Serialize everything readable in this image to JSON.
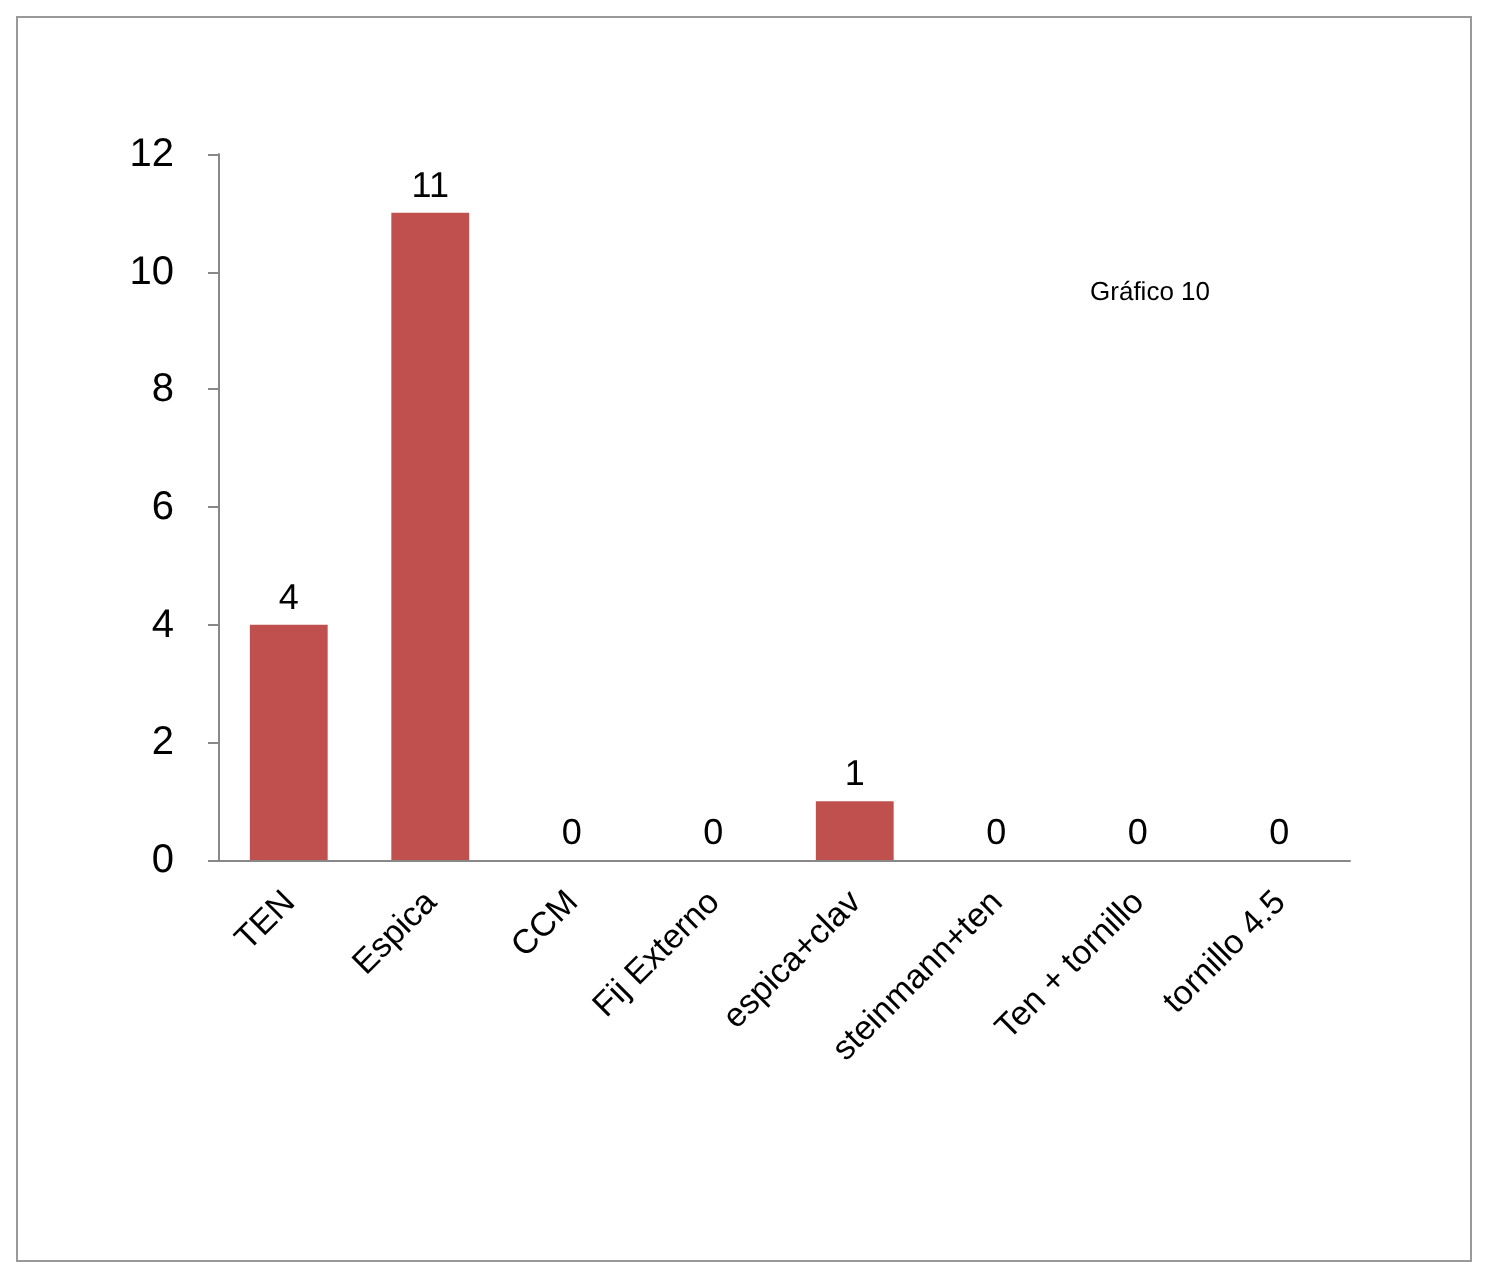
{
  "chart_data": {
    "type": "bar",
    "categories": [
      "TEN",
      "Espica",
      "CCM",
      "Fij Externo",
      "espica+clav",
      "steinmann+ten",
      "Ten + tornillo",
      "tornillo 4.5"
    ],
    "values": [
      4,
      11,
      0,
      0,
      1,
      0,
      0,
      0
    ],
    "color": "#c0504d",
    "ylim": [
      0,
      12
    ],
    "yticks": [
      0,
      2,
      4,
      6,
      8,
      10,
      12
    ],
    "grid": false,
    "data_labels": true,
    "annotations": [
      "Gráfico 10"
    ]
  }
}
